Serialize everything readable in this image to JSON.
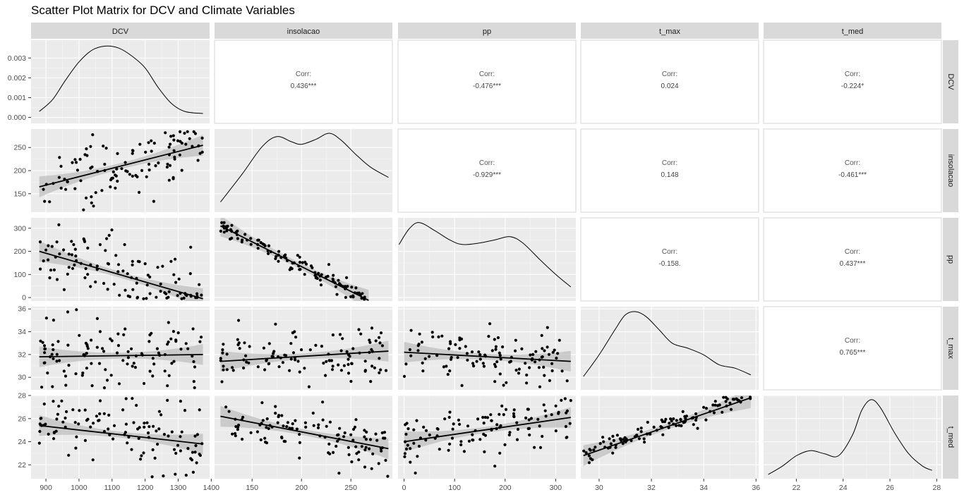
{
  "title": "Scatter Plot Matrix for DCV and Climate Variables",
  "chart_data": {
    "type": "scatter",
    "variables": [
      "DCV",
      "insolacao",
      "pp",
      "t_max",
      "t_med"
    ],
    "corr_label": "Corr:",
    "correlations": [
      {
        "row": "DCV",
        "col": "insolacao",
        "value": "0.436***"
      },
      {
        "row": "DCV",
        "col": "pp",
        "value": "-0.476***"
      },
      {
        "row": "DCV",
        "col": "t_max",
        "value": "0.024"
      },
      {
        "row": "DCV",
        "col": "t_med",
        "value": "-0.224*"
      },
      {
        "row": "insolacao",
        "col": "pp",
        "value": "-0.929***"
      },
      {
        "row": "insolacao",
        "col": "t_max",
        "value": "0.148"
      },
      {
        "row": "insolacao",
        "col": "t_med",
        "value": "-0.461***"
      },
      {
        "row": "pp",
        "col": "t_max",
        "value": "-0.158."
      },
      {
        "row": "pp",
        "col": "t_med",
        "value": "0.437***"
      },
      {
        "row": "t_max",
        "col": "t_med",
        "value": "0.765***"
      }
    ],
    "x_axes": {
      "DCV": {
        "range": [
          855,
          1395
        ],
        "ticks": [
          900,
          1000,
          1100,
          1200,
          1300,
          1400
        ]
      },
      "insolacao": {
        "range": [
          112,
          292
        ],
        "ticks": [
          150,
          200,
          250
        ]
      },
      "pp": {
        "range": [
          -12,
          340
        ],
        "ticks": [
          0,
          100,
          200,
          300
        ]
      },
      "t_max": {
        "range": [
          29.3,
          36.1
        ],
        "ticks": [
          30,
          32,
          34,
          36
        ]
      },
      "t_med": {
        "range": [
          20.6,
          28.2
        ],
        "ticks": [
          22,
          24,
          26,
          28
        ]
      }
    },
    "y_axes": {
      "DCV": {
        "range": [
          -0.0003,
          0.0039
        ],
        "ticks": [
          0.0,
          0.001,
          0.002,
          0.003
        ],
        "tick_labels": [
          "0.000",
          "0.001",
          "0.002",
          "0.003"
        ]
      },
      "insolacao": {
        "range": [
          110,
          290
        ],
        "ticks": [
          150,
          200,
          250
        ]
      },
      "pp": {
        "range": [
          -15,
          345
        ],
        "ticks": [
          0,
          100,
          200,
          300
        ]
      },
      "t_max": {
        "range": [
          28.9,
          36.2
        ],
        "ticks": [
          30,
          32,
          34,
          36
        ]
      },
      "t_med": {
        "range": [
          20.8,
          28.0
        ],
        "ticks": [
          22,
          24,
          26,
          28
        ]
      }
    },
    "density_curves": {
      "DCV": [
        [
          880,
          0.0003
        ],
        [
          920,
          0.0009
        ],
        [
          960,
          0.0019
        ],
        [
          1000,
          0.0028
        ],
        [
          1040,
          0.0034
        ],
        [
          1080,
          0.0036
        ],
        [
          1120,
          0.0035
        ],
        [
          1160,
          0.0031
        ],
        [
          1200,
          0.0025
        ],
        [
          1240,
          0.0015
        ],
        [
          1280,
          0.0007
        ],
        [
          1320,
          0.0003
        ],
        [
          1375,
          0.0002
        ]
      ],
      "insolacao": [
        [
          118,
          0.0012
        ],
        [
          140,
          0.0045
        ],
        [
          160,
          0.0077
        ],
        [
          175,
          0.0089
        ],
        [
          190,
          0.0083
        ],
        [
          200,
          0.008
        ],
        [
          215,
          0.0086
        ],
        [
          228,
          0.0093
        ],
        [
          240,
          0.0085
        ],
        [
          255,
          0.0068
        ],
        [
          270,
          0.0053
        ],
        [
          288,
          0.0041
        ]
      ],
      "pp": [
        [
          -10,
          0.0041
        ],
        [
          10,
          0.0051
        ],
        [
          30,
          0.0055
        ],
        [
          60,
          0.005
        ],
        [
          90,
          0.0044
        ],
        [
          115,
          0.0041
        ],
        [
          150,
          0.0042
        ],
        [
          180,
          0.0044
        ],
        [
          210,
          0.0046
        ],
        [
          235,
          0.0042
        ],
        [
          270,
          0.0031
        ],
        [
          300,
          0.0022
        ],
        [
          330,
          0.0014
        ]
      ],
      "t_max": [
        [
          29.4,
          0.03
        ],
        [
          30.0,
          0.16
        ],
        [
          30.6,
          0.31
        ],
        [
          31.0,
          0.4
        ],
        [
          31.4,
          0.42
        ],
        [
          31.8,
          0.39
        ],
        [
          32.3,
          0.31
        ],
        [
          32.8,
          0.23
        ],
        [
          33.4,
          0.2
        ],
        [
          34.0,
          0.16
        ],
        [
          34.6,
          0.1
        ],
        [
          35.2,
          0.08
        ],
        [
          35.8,
          0.04
        ]
      ],
      "t_med": [
        [
          20.8,
          0.02
        ],
        [
          21.4,
          0.06
        ],
        [
          22.0,
          0.11
        ],
        [
          22.6,
          0.135
        ],
        [
          23.2,
          0.12
        ],
        [
          23.8,
          0.11
        ],
        [
          24.4,
          0.21
        ],
        [
          24.8,
          0.33
        ],
        [
          25.2,
          0.38
        ],
        [
          25.6,
          0.34
        ],
        [
          26.2,
          0.22
        ],
        [
          26.8,
          0.12
        ],
        [
          27.4,
          0.06
        ],
        [
          27.8,
          0.04
        ]
      ]
    },
    "density_y_ranges": {
      "DCV": [
        -0.0003,
        0.0039
      ],
      "insolacao": [
        0.0,
        0.0098
      ],
      "pp": [
        0.0005,
        0.0058
      ],
      "t_max": [
        -0.05,
        0.45
      ],
      "t_med": [
        0.0,
        0.4
      ]
    },
    "regression_lines": [
      {
        "x": "DCV",
        "y": "insolacao",
        "from": [
          880,
          165
        ],
        "to": [
          1375,
          255
        ]
      },
      {
        "x": "DCV",
        "y": "pp",
        "from": [
          880,
          200
        ],
        "to": [
          1375,
          -5
        ]
      },
      {
        "x": "insolacao",
        "y": "pp",
        "from": [
          118,
          310
        ],
        "to": [
          268,
          -12
        ]
      },
      {
        "x": "DCV",
        "y": "t_max",
        "from": [
          880,
          31.8
        ],
        "to": [
          1375,
          32.0
        ]
      },
      {
        "x": "insolacao",
        "y": "t_max",
        "from": [
          118,
          31.4
        ],
        "to": [
          288,
          32.3
        ]
      },
      {
        "x": "pp",
        "y": "t_max",
        "from": [
          0,
          32.2
        ],
        "to": [
          330,
          31.4
        ]
      },
      {
        "x": "DCV",
        "y": "t_med",
        "from": [
          880,
          25.4
        ],
        "to": [
          1375,
          23.8
        ]
      },
      {
        "x": "insolacao",
        "y": "t_med",
        "from": [
          118,
          26.2
        ],
        "to": [
          288,
          23.4
        ]
      },
      {
        "x": "pp",
        "y": "t_med",
        "from": [
          0,
          24.0
        ],
        "to": [
          330,
          26.1
        ]
      },
      {
        "x": "t_max",
        "y": "t_med",
        "from": [
          29.4,
          22.8
        ],
        "to": [
          35.8,
          27.8
        ]
      }
    ]
  }
}
